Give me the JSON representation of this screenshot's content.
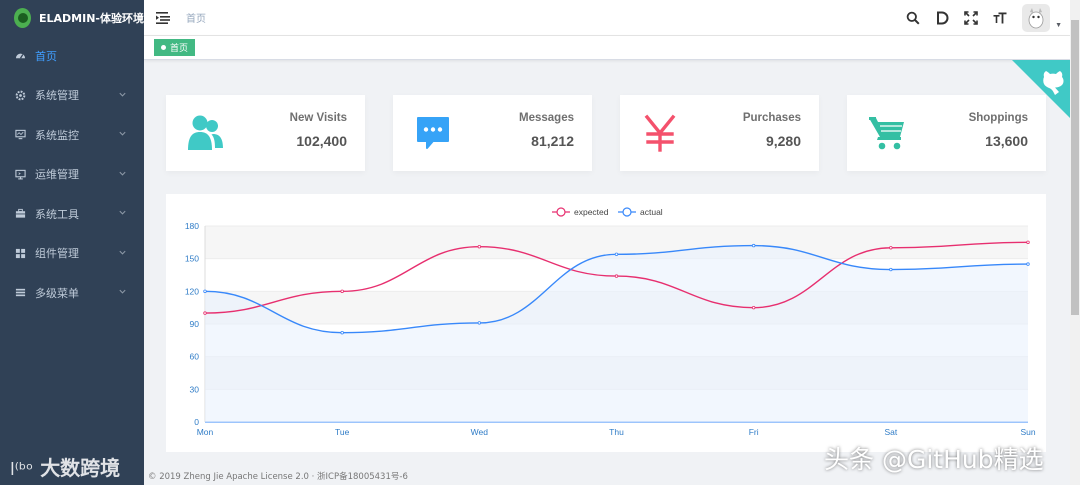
{
  "app": {
    "title": "ELADMIN-体验环境"
  },
  "sidebar": {
    "items": [
      {
        "label": "首页",
        "icon": "dashboard-icon",
        "active": true
      },
      {
        "label": "系统管理",
        "icon": "gear-icon"
      },
      {
        "label": "系统监控",
        "icon": "monitor-icon"
      },
      {
        "label": "运维管理",
        "icon": "ops-icon"
      },
      {
        "label": "系统工具",
        "icon": "toolbox-icon"
      },
      {
        "label": "组件管理",
        "icon": "components-icon"
      },
      {
        "label": "多级菜单",
        "icon": "list-icon"
      }
    ]
  },
  "navbar": {
    "breadcrumb": "首页"
  },
  "tags": {
    "active": "首页"
  },
  "panels": [
    {
      "label": "New Visits",
      "value": "102,400",
      "icon": "users-icon",
      "color": "#40c9c6"
    },
    {
      "label": "Messages",
      "value": "81,212",
      "icon": "message-icon",
      "color": "#36a3f7"
    },
    {
      "label": "Purchases",
      "value": "9,280",
      "icon": "yen-icon",
      "color": "#f4516c"
    },
    {
      "label": "Shoppings",
      "value": "13,600",
      "icon": "cart-icon",
      "color": "#34bfa3"
    }
  ],
  "chart_data": {
    "type": "line",
    "categories": [
      "Mon",
      "Tue",
      "Wed",
      "Thu",
      "Fri",
      "Sat",
      "Sun"
    ],
    "series": [
      {
        "name": "expected",
        "values": [
          100,
          120,
          161,
          134,
          105,
          160,
          165
        ],
        "color": "#e72f6f"
      },
      {
        "name": "actual",
        "values": [
          120,
          82,
          91,
          154,
          162,
          140,
          145
        ],
        "color": "#3888fa"
      }
    ],
    "ylim": [
      0,
      180
    ],
    "yticks": [
      "0",
      "30",
      "60",
      "90",
      "120",
      "150",
      "180"
    ],
    "legend": "top-center",
    "grid": true
  },
  "footer": {
    "text": "© 2019 Zheng Jie Apache License 2.0 · 浙ICP备18005431号-6"
  },
  "watermarks": {
    "left": "大数跨境",
    "right": "头条 @GitHub精选"
  }
}
